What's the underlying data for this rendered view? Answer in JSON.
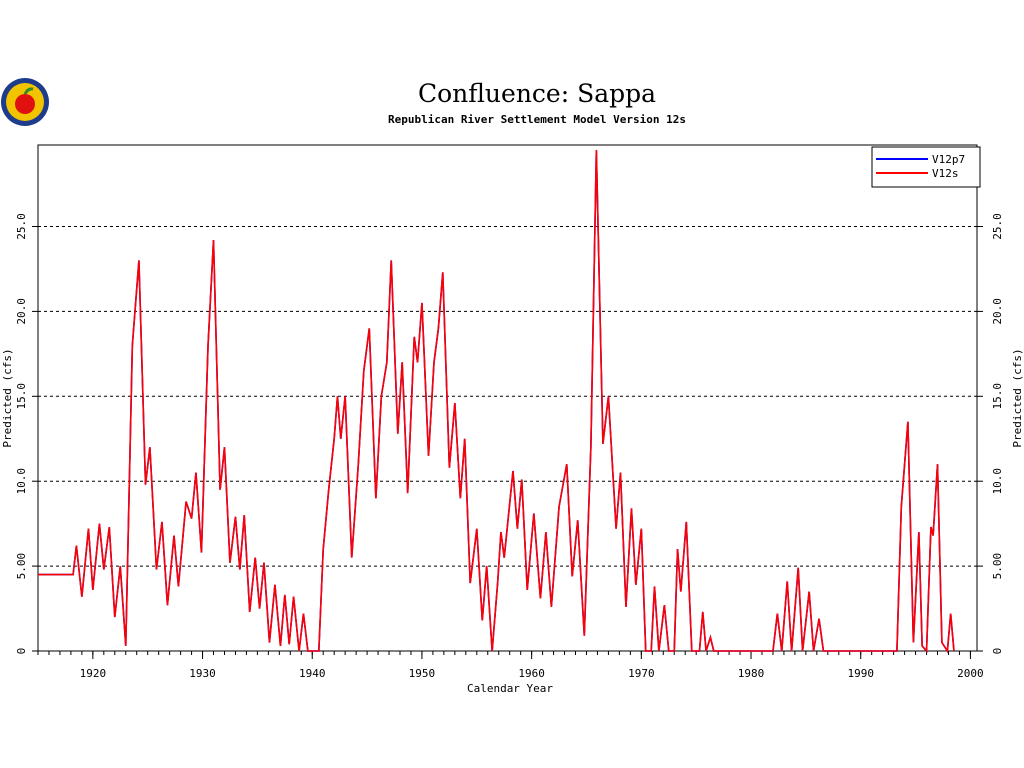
{
  "chart_data": {
    "type": "line",
    "title": "Confluence:  Sappa",
    "subtitle": "Republican River Settlement Model Version 12s",
    "xlabel": "Calendar Year",
    "ylabel": "Predicted (cfs)",
    "xlim": [
      1915,
      2000.6
    ],
    "xticks": [
      1920,
      1930,
      1940,
      1950,
      1960,
      1970,
      1980,
      1990,
      2000
    ],
    "ylim": [
      0,
      29.8
    ],
    "yticks": [
      0,
      {
        "value": 5,
        "label": "5.00"
      },
      {
        "value": 10,
        "label": "10.0"
      },
      {
        "value": 15,
        "label": "15.0"
      },
      {
        "value": 20,
        "label": "20.0"
      },
      {
        "value": 25,
        "label": "25.0"
      }
    ],
    "y2lim": [
      0,
      29.8
    ],
    "y2ticks": [
      0,
      {
        "value": 5,
        "label": "5.00"
      },
      {
        "value": 10,
        "label": "10.0"
      },
      {
        "value": 15,
        "label": "15.0"
      },
      {
        "value": 20,
        "label": "20.0"
      },
      {
        "value": 25,
        "label": "25.0"
      }
    ],
    "grid": true,
    "legend": "upper right",
    "x": [
      1915,
      1918.2,
      1918.5,
      1919.0,
      1919.6,
      1920.0,
      1920.6,
      1921.0,
      1921.5,
      1922.0,
      1922.5,
      1923.0,
      1923.6,
      1924.2,
      1924.8,
      1925.2,
      1925.8,
      1926.3,
      1926.8,
      1927.4,
      1927.8,
      1928.5,
      1929.0,
      1929.4,
      1929.9,
      1930.5,
      1931.0,
      1931.6,
      1932.0,
      1932.5,
      1933.0,
      1933.4,
      1933.8,
      1934.3,
      1934.8,
      1935.2,
      1935.6,
      1936.1,
      1936.6,
      1937.1,
      1937.5,
      1937.9,
      1938.3,
      1938.8,
      1939.2,
      1939.6,
      1940.6,
      1941.0,
      1941.5,
      1942.0,
      1942.3,
      1942.6,
      1943.0,
      1943.6,
      1944.2,
      1944.7,
      1945.2,
      1945.8,
      1946.3,
      1946.8,
      1947.2,
      1947.8,
      1948.2,
      1948.7,
      1949.3,
      1949.6,
      1950.0,
      1950.6,
      1951.1,
      1951.5,
      1951.9,
      1952.5,
      1953.0,
      1953.5,
      1953.9,
      1954.4,
      1955.0,
      1955.5,
      1955.9,
      1956.4,
      1956.9,
      1957.2,
      1957.5,
      1958.3,
      1958.7,
      1959.1,
      1959.6,
      1960.2,
      1960.8,
      1961.3,
      1961.8,
      1962.5,
      1963.2,
      1963.7,
      1964.2,
      1964.8,
      1965.4,
      1965.9,
      1966.5,
      1967.0,
      1967.7,
      1968.1,
      1968.6,
      1969.1,
      1969.5,
      1970.0,
      1970.4,
      1970.9,
      1971.2,
      1971.6,
      1972.1,
      1972.5,
      1973.0,
      1973.3,
      1973.6,
      1974.1,
      1974.6,
      1975.3,
      1975.6,
      1975.9,
      1976.3,
      1976.6,
      1982.0,
      1982.4,
      1982.8,
      1983.3,
      1983.7,
      1984.3,
      1984.7,
      1985.3,
      1985.7,
      1986.2,
      1986.6,
      1993.3,
      1993.7,
      1994.3,
      1994.8,
      1995.3,
      1995.6,
      1996.0,
      1996.4,
      1996.6,
      1997.0,
      1997.4,
      1997.9,
      1998.2,
      1998.5
    ],
    "series": [
      {
        "name": "V12p7",
        "color": "#0000ff",
        "values": [
          4.5,
          4.5,
          6.2,
          3.2,
          7.2,
          3.6,
          7.5,
          4.8,
          7.3,
          2.0,
          5.0,
          0.3,
          18,
          23,
          9.8,
          12,
          4.8,
          7.6,
          2.7,
          6.8,
          3.8,
          8.8,
          7.8,
          10.5,
          5.8,
          18,
          24.2,
          9.5,
          12,
          5.2,
          7.9,
          4.8,
          8.0,
          2.3,
          5.5,
          2.5,
          5.2,
          0.5,
          3.9,
          0.3,
          3.3,
          0.4,
          3.2,
          0,
          2.2,
          0,
          0,
          6,
          9.5,
          12.5,
          15,
          12.5,
          15,
          5.5,
          11,
          16.5,
          19,
          9,
          15,
          17,
          23,
          12.8,
          17,
          9.3,
          18.5,
          17,
          20.5,
          11.5,
          17,
          19,
          22.3,
          10.8,
          14.6,
          9,
          12.5,
          4,
          7.2,
          1.8,
          5.0,
          0,
          4,
          7,
          5.5,
          10.6,
          7.2,
          10.1,
          3.6,
          8.1,
          3.1,
          7,
          2.6,
          8.5,
          11,
          4.4,
          7.7,
          0.9,
          12,
          29.5,
          12.2,
          15,
          7.2,
          10.5,
          2.6,
          8.4,
          3.9,
          7.2,
          0,
          0,
          3.8,
          0,
          2.7,
          0,
          0,
          6,
          3.5,
          7.6,
          0,
          0,
          2.3,
          0,
          0.8,
          0,
          0,
          2.2,
          0,
          4.1,
          0,
          4.9,
          0,
          3.5,
          0,
          1.9,
          0,
          0,
          8.5,
          13.5,
          0.5,
          7,
          0.3,
          0,
          7.3,
          6.8,
          11,
          0.5,
          0,
          2.2,
          0
        ]
      },
      {
        "name": "V12s",
        "color": "#ff0000",
        "values": [
          4.5,
          4.5,
          6.2,
          3.2,
          7.2,
          3.6,
          7.5,
          4.8,
          7.3,
          2.0,
          5.0,
          0.3,
          18,
          23,
          9.8,
          12,
          4.8,
          7.6,
          2.7,
          6.8,
          3.8,
          8.8,
          7.8,
          10.5,
          5.8,
          18,
          24.2,
          9.5,
          12,
          5.2,
          7.9,
          4.8,
          8.0,
          2.3,
          5.5,
          2.5,
          5.2,
          0.5,
          3.9,
          0.3,
          3.3,
          0.4,
          3.2,
          0,
          2.2,
          0,
          0,
          6,
          9.5,
          12.5,
          15,
          12.5,
          15,
          5.5,
          11,
          16.5,
          19,
          9,
          15,
          17,
          23,
          12.8,
          17,
          9.3,
          18.5,
          17,
          20.5,
          11.5,
          17,
          19,
          22.3,
          10.8,
          14.6,
          9,
          12.5,
          4,
          7.2,
          1.8,
          5.0,
          0,
          4,
          7,
          5.5,
          10.6,
          7.2,
          10.1,
          3.6,
          8.1,
          3.1,
          7,
          2.6,
          8.5,
          11,
          4.4,
          7.7,
          0.9,
          12,
          29.5,
          12.2,
          15,
          7.2,
          10.5,
          2.6,
          8.4,
          3.9,
          7.2,
          0,
          0,
          3.8,
          0,
          2.7,
          0,
          0,
          6,
          3.5,
          7.6,
          0,
          0,
          2.3,
          0,
          0.8,
          0,
          0,
          2.2,
          0,
          4.1,
          0,
          4.9,
          0,
          3.5,
          0,
          1.9,
          0,
          0,
          8.5,
          13.5,
          0.5,
          7,
          0.3,
          0,
          7.3,
          6.8,
          11,
          0.5,
          0,
          2.2,
          0
        ]
      }
    ]
  }
}
